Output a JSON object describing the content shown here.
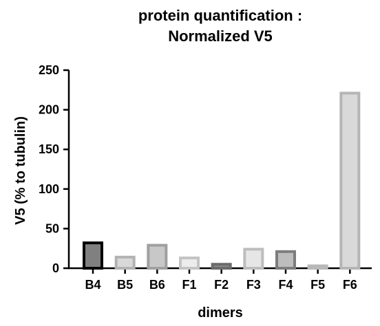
{
  "chart_data": {
    "type": "bar",
    "title_line1": "protein quantification :",
    "title_line2": "Normalized V5",
    "xlabel": "dimers",
    "ylabel": "V5 (% to tubulin)",
    "categories": [
      "B4",
      "B5",
      "B6",
      "F1",
      "F2",
      "F3",
      "F4",
      "F5",
      "F6"
    ],
    "values": [
      32,
      14,
      29,
      13,
      5,
      24,
      21,
      3,
      221
    ],
    "ylim": [
      0,
      250
    ],
    "yticks": [
      "0",
      "50",
      "100",
      "150",
      "200",
      "250"
    ],
    "grid": false,
    "legend": "none",
    "bar_fills": [
      "#808080",
      "#d9d9d9",
      "#c8c8c8",
      "#ececec",
      "#8a8a8a",
      "#e6e6e6",
      "#bdbdbd",
      "#e6e6e6",
      "#d9d9d9"
    ],
    "bar_strokes": [
      "#000000",
      "#b3b3b3",
      "#a0a0a0",
      "#c4c4c4",
      "#6b6b6b",
      "#bdbdbd",
      "#7d7d7d",
      "#b8b8b8",
      "#b5b5b5"
    ]
  }
}
